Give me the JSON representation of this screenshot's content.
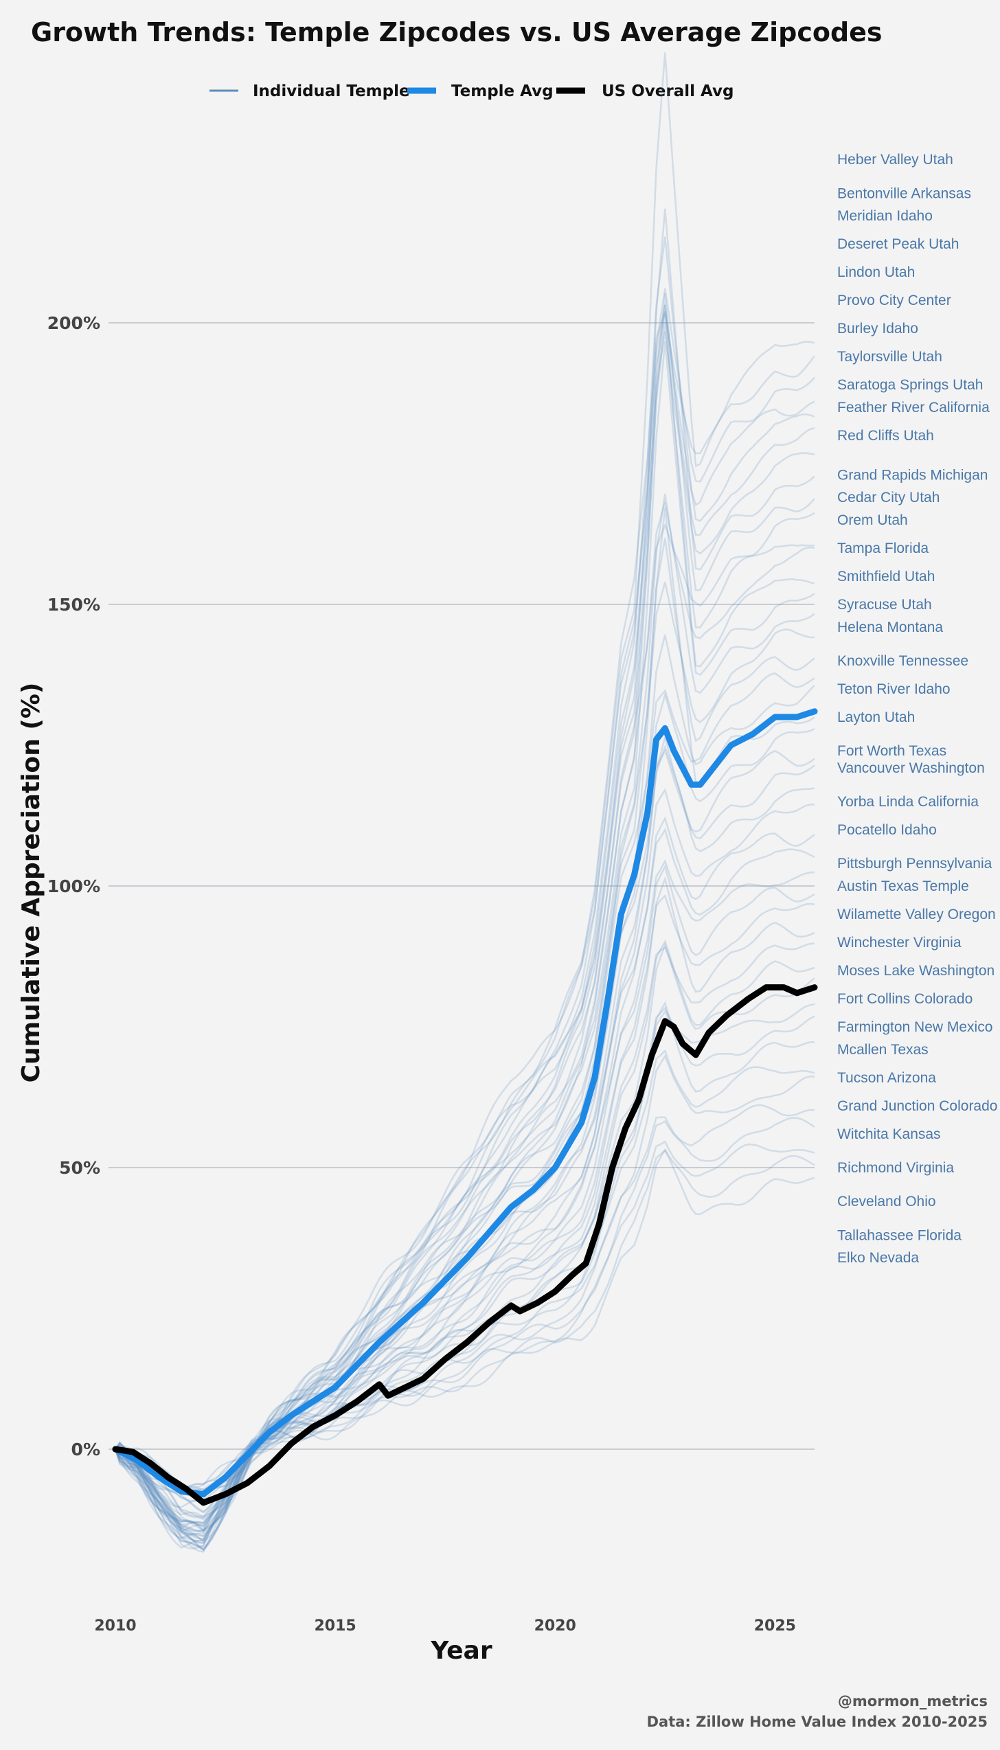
{
  "chart_data": {
    "type": "line",
    "title": "Growth Trends: Temple Zipcodes vs. US Average Zipcodes",
    "xlabel": "Year",
    "ylabel": "Cumulative Appreciation (%)",
    "xlim": [
      2010,
      2025.9
    ],
    "ylim": [
      -27,
      227
    ],
    "x_ticks": [
      2010,
      2015,
      2020,
      2025
    ],
    "x_tick_labels": [
      "2010",
      "2015",
      "2020",
      "2025"
    ],
    "y_ticks": [
      0,
      50,
      100,
      150,
      200
    ],
    "y_tick_labels": [
      "0%",
      "50%",
      "100%",
      "150%",
      "200%"
    ],
    "grid": "horizontal",
    "legend": {
      "position": "top-center",
      "entries": [
        "Individual Temple",
        "Temple Avg",
        "US Overall Avg"
      ]
    },
    "colors": {
      "individual": "#5b8cc0",
      "temple_avg": "#1e88e5",
      "us_avg": "#000000",
      "label": "#4a78a8",
      "grid": "#c9ccd2",
      "background": "#f3f3f3"
    },
    "series": [
      {
        "name": "Temple Avg",
        "x": [
          2010,
          2010.5,
          2011,
          2011.5,
          2012,
          2012.5,
          2013,
          2013.5,
          2014,
          2014.5,
          2015,
          2015.5,
          2016,
          2016.5,
          2017,
          2017.5,
          2018,
          2018.5,
          2019,
          2019.5,
          2020,
          2020.3,
          2020.6,
          2020.9,
          2021.2,
          2021.5,
          2021.8,
          2022.1,
          2022.3,
          2022.5,
          2022.7,
          2022.9,
          2023.1,
          2023.3,
          2023.6,
          2024,
          2024.5,
          2025,
          2025.5,
          2025.9
        ],
        "values": [
          0,
          -2,
          -5,
          -7.5,
          -8,
          -5,
          -1,
          3,
          6,
          8.5,
          11,
          15,
          19,
          22.5,
          26,
          30,
          34,
          38.5,
          43,
          46,
          50,
          54,
          58,
          66,
          80,
          95,
          102,
          113,
          126,
          128,
          124,
          121,
          118,
          118,
          121,
          125,
          127,
          130,
          130,
          131
        ]
      },
      {
        "name": "US Overall Avg",
        "x": [
          2010,
          2010.4,
          2010.8,
          2011.2,
          2011.6,
          2012,
          2012.5,
          2013,
          2013.5,
          2014,
          2014.5,
          2015,
          2015.5,
          2016,
          2016.2,
          2016.6,
          2017,
          2017.5,
          2018,
          2018.5,
          2019,
          2019.2,
          2019.6,
          2020,
          2020.4,
          2020.7,
          2021,
          2021.3,
          2021.6,
          2021.9,
          2022.2,
          2022.5,
          2022.7,
          2022.9,
          2023.2,
          2023.5,
          2023.9,
          2024.4,
          2024.8,
          2025.2,
          2025.5,
          2025.9
        ],
        "values": [
          0,
          -0.5,
          -2.5,
          -5,
          -7,
          -9.5,
          -8,
          -6,
          -3,
          1,
          4,
          6,
          8.5,
          11.5,
          9.5,
          11,
          12.5,
          16,
          19,
          22.5,
          25.5,
          24.5,
          26,
          28,
          31,
          33,
          40,
          50,
          57,
          62,
          70,
          76,
          75,
          72,
          70,
          74,
          77,
          80,
          82,
          82,
          81,
          82
        ]
      }
    ],
    "individual_series_count": 44,
    "temple_labels": [
      {
        "name": "Heber Valley Utah",
        "value": 229
      },
      {
        "name": "Bentonville Arkansas",
        "value": 223
      },
      {
        "name": "Meridian Idaho",
        "value": 219
      },
      {
        "name": "Deseret Peak Utah",
        "value": 214
      },
      {
        "name": "Lindon Utah",
        "value": 209
      },
      {
        "name": "Provo City Center",
        "value": 204
      },
      {
        "name": "Burley Idaho",
        "value": 199
      },
      {
        "name": "Taylorsville Utah",
        "value": 194
      },
      {
        "name": "Saratoga Springs Utah",
        "value": 189
      },
      {
        "name": "Feather River California",
        "value": 185
      },
      {
        "name": "Red Cliffs Utah",
        "value": 180
      },
      {
        "name": "Grand Rapids Michigan",
        "value": 173
      },
      {
        "name": "Cedar City Utah",
        "value": 169
      },
      {
        "name": "Orem Utah",
        "value": 165
      },
      {
        "name": "Tampa Florida",
        "value": 160
      },
      {
        "name": "Smithfield Utah",
        "value": 155
      },
      {
        "name": "Syracuse Utah",
        "value": 150
      },
      {
        "name": "Helena Montana",
        "value": 146
      },
      {
        "name": "Knoxville Tennessee",
        "value": 140
      },
      {
        "name": "Teton River Idaho",
        "value": 135
      },
      {
        "name": "Layton Utah",
        "value": 130
      },
      {
        "name": "Fort Worth Texas",
        "value": 124
      },
      {
        "name": "Vancouver Washington",
        "value": 121
      },
      {
        "name": "Yorba Linda California",
        "value": 115
      },
      {
        "name": "Pocatello Idaho",
        "value": 110
      },
      {
        "name": "Pittsburgh Pennsylvania",
        "value": 104
      },
      {
        "name": "Austin Texas Temple",
        "value": 100
      },
      {
        "name": "Wilamette Valley Oregon",
        "value": 95
      },
      {
        "name": "Winchester Virginia",
        "value": 90
      },
      {
        "name": "Moses Lake Washington",
        "value": 85
      },
      {
        "name": "Fort Collins Colorado",
        "value": 80
      },
      {
        "name": "Farmington New Mexico",
        "value": 75
      },
      {
        "name": "Mcallen Texas",
        "value": 71
      },
      {
        "name": "Tucson Arizona",
        "value": 66
      },
      {
        "name": "Grand Junction Colorado",
        "value": 61
      },
      {
        "name": "Witchita Kansas",
        "value": 56
      },
      {
        "name": "Richmond Virginia",
        "value": 50
      },
      {
        "name": "Cleveland Ohio",
        "value": 44
      },
      {
        "name": "Tallahassee Florida",
        "value": 38
      },
      {
        "name": "Elko Nevada",
        "value": 34
      }
    ]
  },
  "caption": {
    "handle": "@mormon_metrics",
    "source": "Data: Zillow Home Value Index 2010-2025"
  }
}
